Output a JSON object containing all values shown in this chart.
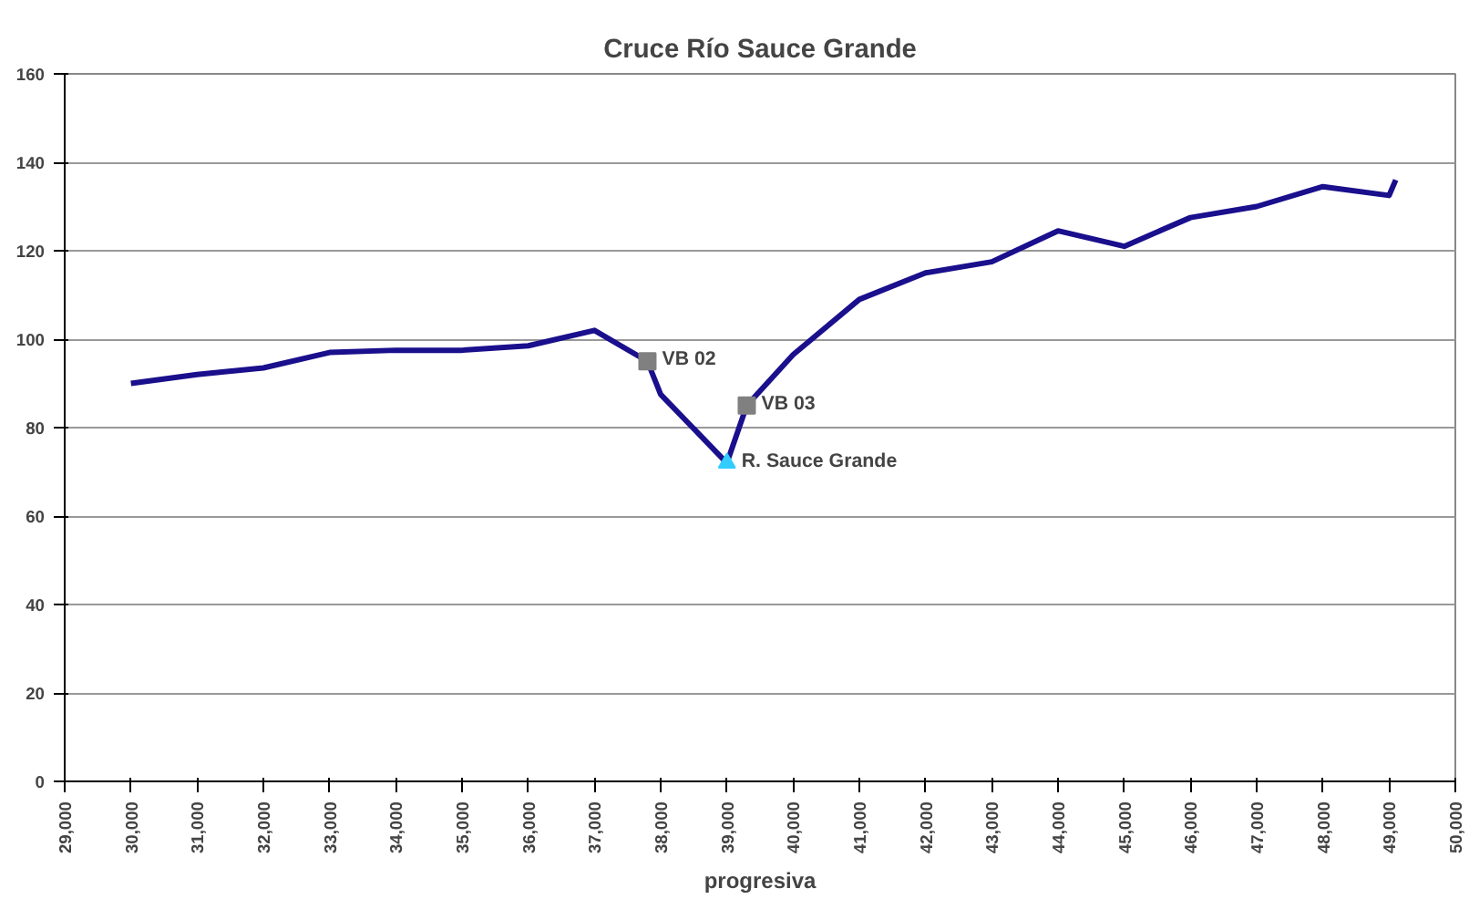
{
  "chart_data": {
    "type": "line",
    "title": "Cruce Río Sauce Grande",
    "xlabel": "progresiva",
    "xlim": [
      29000,
      50000
    ],
    "xticks": [
      {
        "value": 29000,
        "label": "29,000"
      },
      {
        "value": 30000,
        "label": "30,000"
      },
      {
        "value": 31000,
        "label": "31,000"
      },
      {
        "value": 32000,
        "label": "32,000"
      },
      {
        "value": 33000,
        "label": "33,000"
      },
      {
        "value": 34000,
        "label": "34,000"
      },
      {
        "value": 35000,
        "label": "35,000"
      },
      {
        "value": 36000,
        "label": "36,000"
      },
      {
        "value": 37000,
        "label": "37,000"
      },
      {
        "value": 38000,
        "label": "38,000"
      },
      {
        "value": 39000,
        "label": "39,000"
      },
      {
        "value": 40000,
        "label": "40,000"
      },
      {
        "value": 41000,
        "label": "41,000"
      },
      {
        "value": 42000,
        "label": "42,000"
      },
      {
        "value": 43000,
        "label": "43,000"
      },
      {
        "value": 44000,
        "label": "44,000"
      },
      {
        "value": 45000,
        "label": "45,000"
      },
      {
        "value": 46000,
        "label": "46,000"
      },
      {
        "value": 47000,
        "label": "47,000"
      },
      {
        "value": 48000,
        "label": "48,000"
      },
      {
        "value": 49000,
        "label": "49,000"
      },
      {
        "value": 50000,
        "label": "50,000"
      }
    ],
    "ylim": [
      0,
      160
    ],
    "yticks": [
      0,
      20,
      40,
      60,
      80,
      100,
      120,
      140,
      160
    ],
    "grid": "y",
    "series": [
      {
        "color": "#1a0f8c",
        "x": [
          30000,
          31000,
          32000,
          33000,
          34000,
          35000,
          36000,
          37000,
          37800,
          38000,
          39000,
          39300,
          40000,
          41000,
          42000,
          43000,
          44000,
          45000,
          46000,
          47000,
          48000,
          49000,
          49100
        ],
        "values": [
          90,
          92,
          93.5,
          97,
          97.5,
          97.5,
          98.5,
          102,
          95,
          87.5,
          72,
          85,
          96.5,
          109,
          115,
          117.5,
          124.5,
          121,
          127.5,
          130,
          134.5,
          132.5,
          136
        ],
        "marker": "none",
        "line_style": "solid"
      },
      {
        "type": "scatter",
        "name": "VB 02",
        "color": "#808080",
        "marker": "square",
        "x": [
          37800
        ],
        "values": [
          95
        ]
      },
      {
        "type": "scatter",
        "name": "VB 03",
        "color": "#808080",
        "marker": "square",
        "x": [
          39300
        ],
        "values": [
          85
        ]
      },
      {
        "type": "scatter",
        "name": "R. Sauce Grande",
        "color": "#33ccff",
        "marker": "triangle",
        "x": [
          39000
        ],
        "values": [
          72
        ]
      }
    ]
  }
}
